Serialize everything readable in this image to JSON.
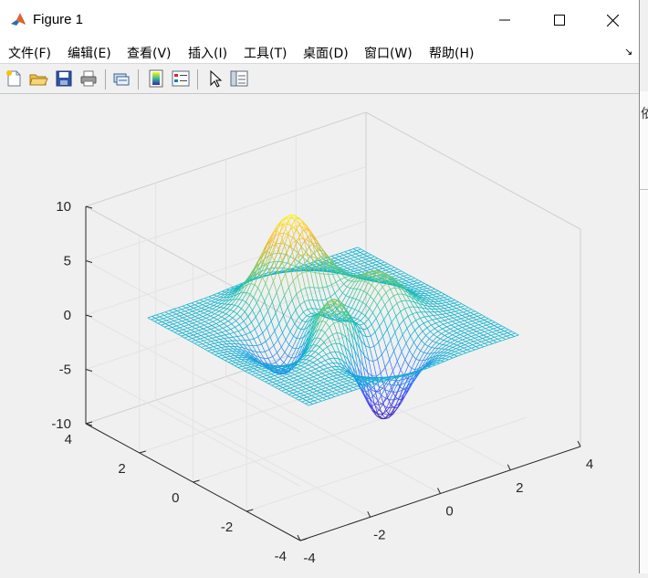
{
  "window": {
    "title": "Figure 1",
    "controls": {
      "minimize": "minimize",
      "maximize": "maximize",
      "close": "close"
    }
  },
  "menubar": {
    "items": [
      {
        "label": "文件(F)"
      },
      {
        "label": "编辑(E)"
      },
      {
        "label": "查看(V)"
      },
      {
        "label": "插入(I)"
      },
      {
        "label": "工具(T)"
      },
      {
        "label": "桌面(D)"
      },
      {
        "label": "窗口(W)"
      },
      {
        "label": "帮助(H)"
      }
    ],
    "expand_glyph": "↘"
  },
  "toolbar": {
    "buttons": [
      {
        "icon": "new-figure-icon"
      },
      {
        "icon": "open-file-icon"
      },
      {
        "icon": "save-icon"
      },
      {
        "icon": "print-icon"
      },
      {
        "icon": "link-plot-icon"
      },
      {
        "icon": "colorbar-icon"
      },
      {
        "icon": "legend-icon"
      },
      {
        "icon": "pointer-edit-icon"
      },
      {
        "icon": "property-inspector-icon"
      }
    ]
  },
  "side_panel": {
    "partial_char": "依"
  },
  "chart_data": {
    "type": "surface-mesh",
    "function": "peaks",
    "colormap": "parula",
    "grid": true,
    "view": "3d-default",
    "x": {
      "lim": [
        -4,
        4
      ],
      "ticks": [
        "-4",
        "-2",
        "0",
        "2",
        "4"
      ]
    },
    "y": {
      "lim": [
        -4,
        4
      ],
      "ticks": [
        "-4",
        "-2",
        "0",
        "2",
        "4"
      ]
    },
    "z": {
      "lim": [
        -10,
        10
      ],
      "ticks": [
        "10",
        "5",
        "0",
        "-5",
        "-10"
      ]
    },
    "mesh": {
      "domain": [
        -3,
        3
      ],
      "samples": 49
    },
    "z_extrema": {
      "max": 8.1,
      "min": -6.55
    }
  }
}
